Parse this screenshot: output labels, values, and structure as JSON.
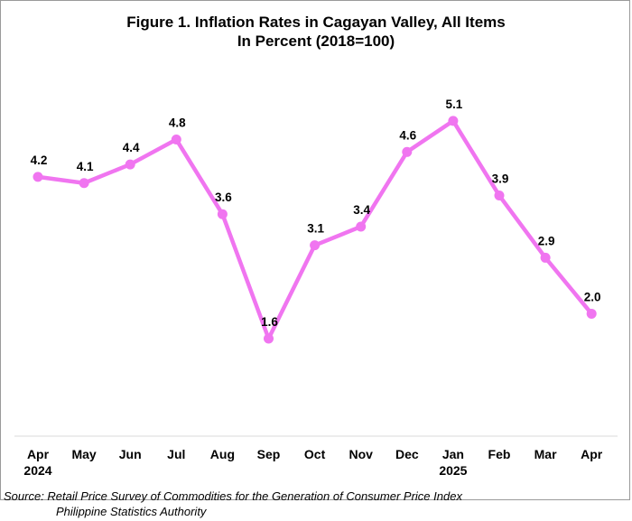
{
  "chart_data": {
    "type": "line",
    "title": "Figure 1. Inflation Rates in Cagayan Valley, All Items",
    "subtitle": "In Percent (2018=100)",
    "categories": [
      "Apr",
      "May",
      "Jun",
      "Jul",
      "Aug",
      "Sep",
      "Oct",
      "Nov",
      "Dec",
      "Jan",
      "Feb",
      "Mar",
      "Apr"
    ],
    "year_labels": [
      "2024",
      "",
      "",
      "",
      "",
      "",
      "",
      "",
      "",
      "2025",
      "",
      "",
      ""
    ],
    "values": [
      4.2,
      4.1,
      4.4,
      4.8,
      3.6,
      1.6,
      3.1,
      3.4,
      4.6,
      5.1,
      3.9,
      2.9,
      2.0
    ],
    "value_labels": [
      "4.2",
      "4.1",
      "4.4",
      "4.8",
      "3.6",
      "1.6",
      "3.1",
      "3.4",
      "4.6",
      "5.1",
      "3.9",
      "2.9",
      "2.0"
    ],
    "line_color": "#f075f0",
    "grid": false,
    "legend": "none"
  },
  "source": {
    "line1": "Source: Retail Price Survey of Commodities for the Generation of Consumer Price Index",
    "line2": "Philippine Statistics Authority"
  }
}
